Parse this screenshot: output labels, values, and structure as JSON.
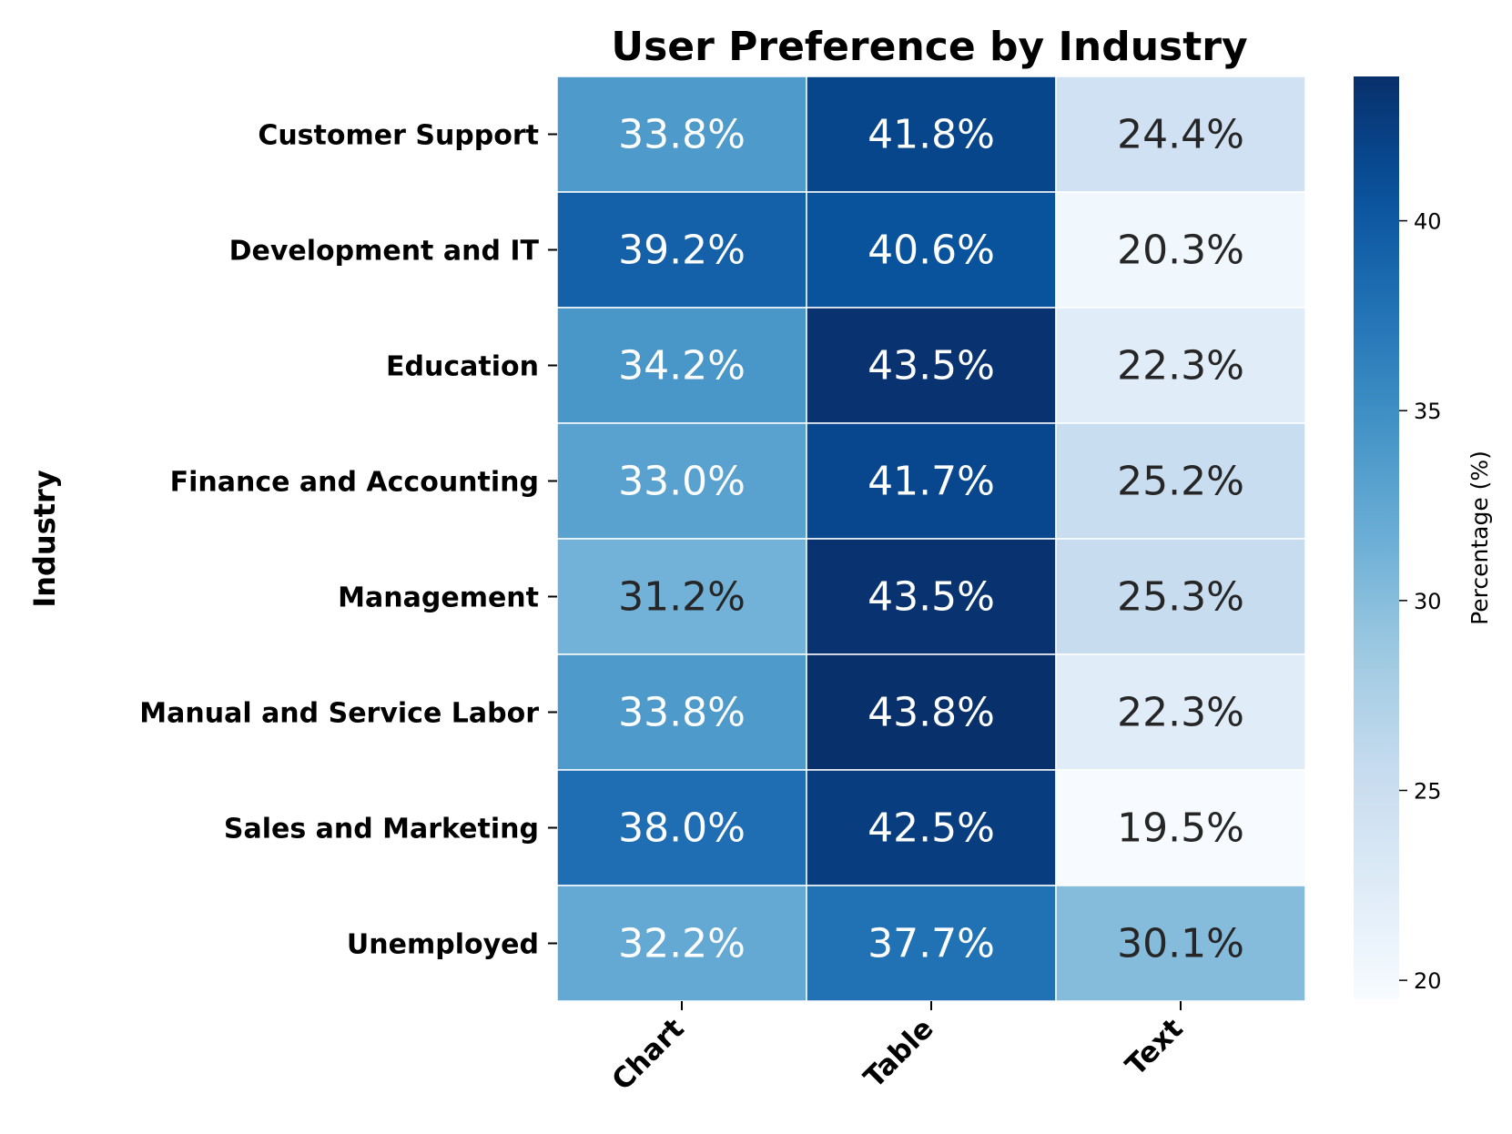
{
  "chart_data": {
    "type": "heatmap",
    "title": "User Preference by Industry",
    "xlabel": "",
    "ylabel": "Industry",
    "columns": [
      "Chart",
      "Table",
      "Text"
    ],
    "rows": [
      "Customer Support",
      "Development and IT",
      "Education",
      "Finance and Accounting",
      "Management",
      "Manual and Service Labor",
      "Sales and Marketing",
      "Unemployed"
    ],
    "values": [
      [
        33.8,
        41.8,
        24.4
      ],
      [
        39.2,
        40.6,
        20.3
      ],
      [
        34.2,
        43.5,
        22.3
      ],
      [
        33.0,
        41.7,
        25.2
      ],
      [
        31.2,
        43.5,
        25.3
      ],
      [
        33.8,
        43.8,
        22.3
      ],
      [
        38.0,
        42.5,
        19.5
      ],
      [
        32.2,
        37.7,
        30.1
      ]
    ],
    "value_format": "%",
    "colormap": "Blues",
    "colorbar": {
      "label": "Percentage (%)",
      "min": 19.5,
      "max": 43.8,
      "ticks": [
        20,
        25,
        30,
        35,
        40
      ]
    }
  }
}
